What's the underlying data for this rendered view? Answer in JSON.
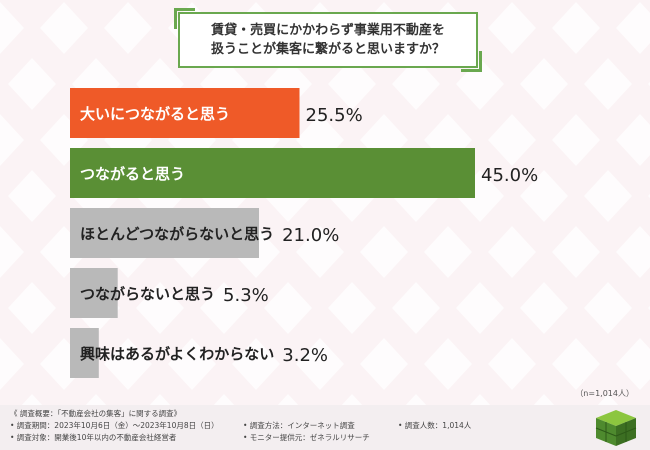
{
  "title": {
    "line1": "賃貸・売買にかかわらず事業用不動産を",
    "line2": "扱うことが集客に繋がると思いますか？"
  },
  "chart_data": {
    "type": "bar",
    "orientation": "horizontal",
    "categories": [
      "大いにつながると思う",
      "つながると思う",
      "ほとんどつながらないと思う",
      "つながらないと思う",
      "興味はあるがよくわからない"
    ],
    "values": [
      25.5,
      45.0,
      21.0,
      5.3,
      3.2
    ],
    "value_labels": [
      "25.5%",
      "45.0%",
      "21.0%",
      "5.3%",
      "3.2%"
    ],
    "colors": [
      "#ef5a28",
      "#5a8f35",
      "#b9b9b9",
      "#b9b9b9",
      "#b9b9b9"
    ],
    "xlim": [
      0,
      100
    ],
    "legend": "none",
    "grid": false
  },
  "note": "（n=1,014人）",
  "footer": {
    "survey_title": "《 調査概要：「不動産会社の集客」に関する調査》",
    "period": "• 調査期間：2023年10月6日（金）〜2023年10月8日（日）",
    "target": "• 調査対象：開業後10年以内の不動産会社経営者",
    "method": "• 調査方法：インターネット調査",
    "monitor": "• モニター提供元：ゼネラルリサーチ",
    "count": "• 調査人数：1,014人"
  },
  "colors": {
    "accent_green": "#6aa84f",
    "accent_orange": "#ef5a28",
    "background": "#fbf3f5"
  }
}
